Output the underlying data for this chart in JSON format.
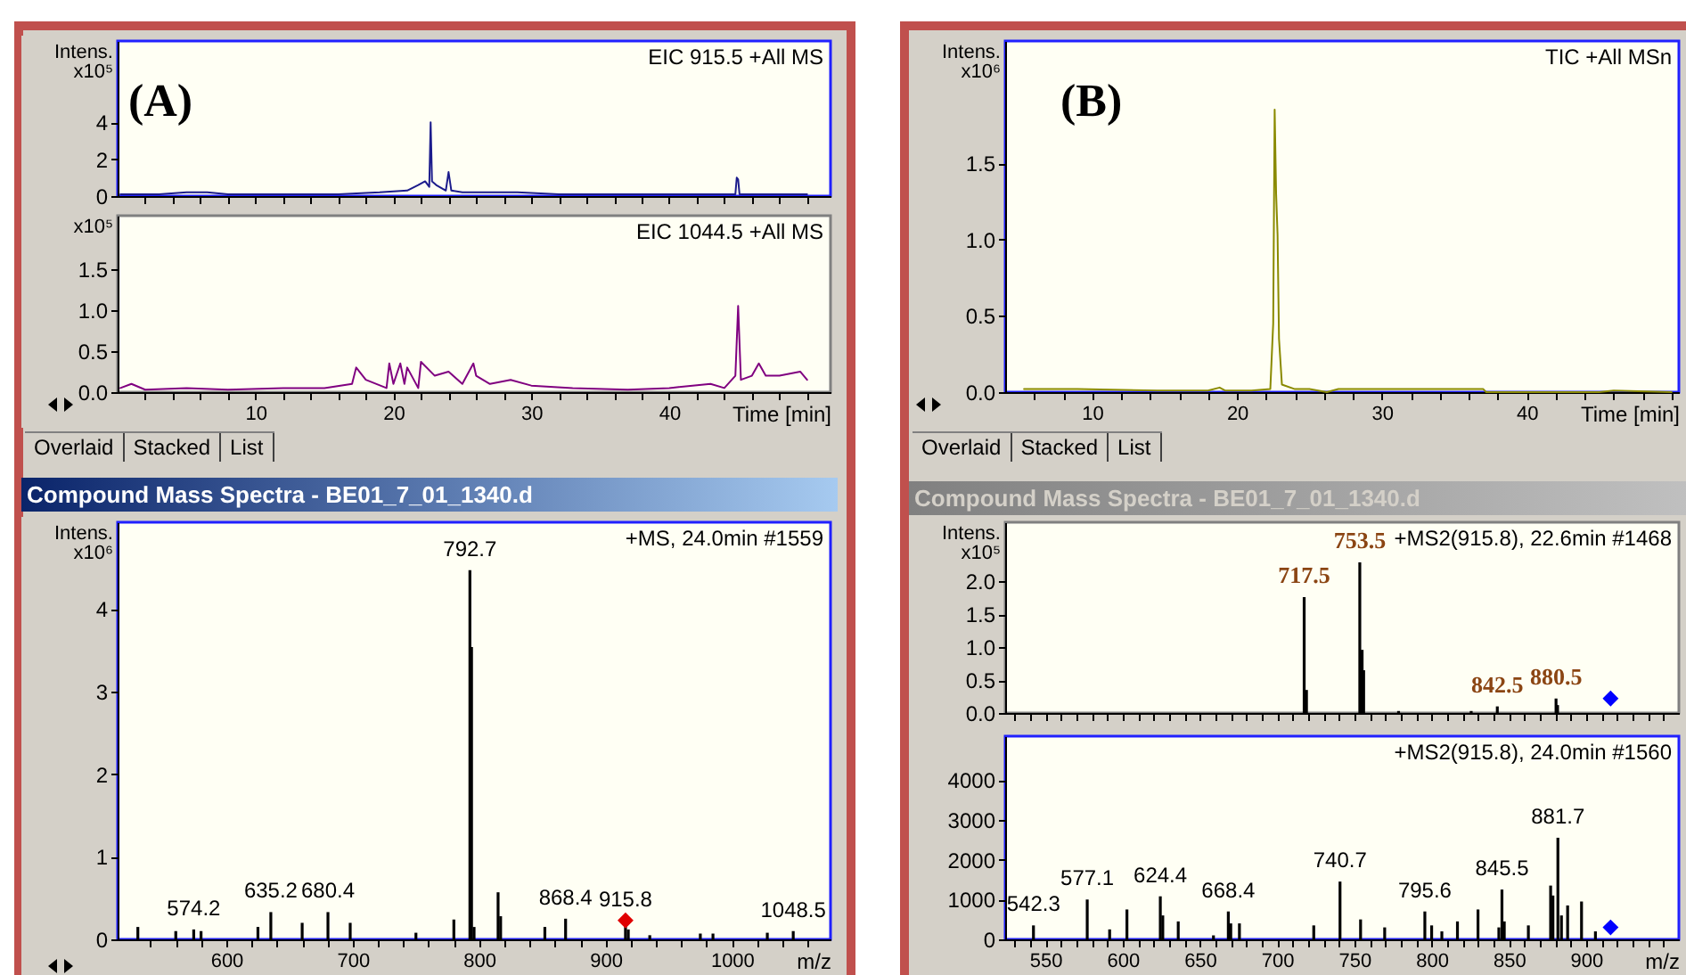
{
  "chart_data": [
    {
      "type": "line",
      "title": "EIC 915.5 +All MS",
      "ylabel": "Intens. x10⁵",
      "annotations": [
        "(A)"
      ],
      "xlim": [
        0,
        51.7
      ],
      "ylim": [
        0,
        8.4
      ],
      "tick_labels": "y",
      "yticks": [
        0,
        2,
        4
      ],
      "xticks": [
        {
          "value": 2,
          "label": null
        },
        {
          "value": 4,
          "label": null
        },
        {
          "value": 6,
          "label": null
        },
        {
          "value": 8,
          "label": null
        },
        10,
        {
          "value": 12,
          "label": null
        },
        {
          "value": 14,
          "label": null
        },
        {
          "value": 16,
          "label": null
        },
        {
          "value": 18,
          "label": null
        },
        20,
        {
          "value": 22,
          "label": null
        },
        {
          "value": 24,
          "label": null
        },
        {
          "value": 26,
          "label": null
        },
        {
          "value": 28,
          "label": null
        },
        30,
        {
          "value": 32,
          "label": null
        },
        {
          "value": 34,
          "label": null
        },
        {
          "value": 36,
          "label": null
        },
        {
          "value": 38,
          "label": null
        },
        40,
        {
          "value": 42,
          "label": null
        },
        {
          "value": 44,
          "label": null
        },
        {
          "value": 46,
          "label": null
        },
        {
          "value": 48,
          "label": null
        },
        {
          "value": 50,
          "label": null
        }
      ],
      "series": [
        {
          "color": "#1c1c8c",
          "x": [
            0.2,
            3,
            5,
            6.5,
            8,
            12,
            16,
            19,
            21,
            21.8,
            22.3,
            22.6,
            22.7,
            22.8,
            23.1,
            23.8,
            24.0,
            24.2,
            25,
            27,
            29,
            32,
            38,
            44.8,
            44.9,
            45.0,
            45.1,
            47,
            50
          ],
          "values": [
            0.1,
            0.1,
            0.2,
            0.2,
            0.1,
            0.1,
            0.1,
            0.2,
            0.3,
            0.6,
            0.8,
            0.5,
            4.0,
            0.8,
            0.6,
            0.3,
            1.3,
            0.3,
            0.2,
            0.2,
            0.2,
            0.1,
            0.1,
            0.1,
            1.0,
            0.9,
            0.1,
            0.1,
            0.1
          ]
        }
      ]
    },
    {
      "type": "line",
      "title": "EIC 1044.5 +All MS",
      "ylabel": "x10⁵",
      "xlabel": "Time [min]",
      "annotations": [
        "Overlaid",
        "Stacked",
        "List"
      ],
      "xlim": [
        0,
        51.7
      ],
      "ylim": [
        0,
        2.15
      ],
      "yticks": [
        {
          "value": 0,
          "label": "0.0"
        },
        0.5,
        {
          "value": 1,
          "label": "1.0"
        },
        1.5
      ],
      "xticks": [
        {
          "value": 2,
          "label": null
        },
        {
          "value": 4,
          "label": null
        },
        {
          "value": 6,
          "label": null
        },
        {
          "value": 8,
          "label": null
        },
        10,
        {
          "value": 12,
          "label": null
        },
        {
          "value": 14,
          "label": null
        },
        {
          "value": 16,
          "label": null
        },
        {
          "value": 18,
          "label": null
        },
        20,
        {
          "value": 22,
          "label": null
        },
        {
          "value": 24,
          "label": null
        },
        {
          "value": 26,
          "label": null
        },
        {
          "value": 28,
          "label": null
        },
        30,
        {
          "value": 32,
          "label": null
        },
        {
          "value": 34,
          "label": null
        },
        {
          "value": 36,
          "label": null
        },
        {
          "value": 38,
          "label": null
        },
        40,
        {
          "value": 42,
          "label": null
        },
        {
          "value": 44,
          "label": null
        },
        {
          "value": 46,
          "label": null
        },
        {
          "value": 48,
          "label": null
        },
        {
          "value": 50,
          "label": null
        }
      ],
      "series": [
        {
          "color": "#800080",
          "x": [
            0.2,
            1,
            2,
            5,
            8,
            12,
            15,
            17,
            17.3,
            18,
            19.5,
            19.7,
            20,
            20.5,
            20.8,
            21,
            21.8,
            22,
            23,
            24,
            25,
            25.8,
            26,
            27,
            28.5,
            30,
            33,
            37,
            40,
            43,
            44,
            44.8,
            45.0,
            45.2,
            46,
            46.5,
            47,
            48,
            49.5,
            50
          ],
          "values": [
            0.05,
            0.1,
            0.03,
            0.05,
            0.03,
            0.05,
            0.05,
            0.1,
            0.3,
            0.15,
            0.05,
            0.35,
            0.1,
            0.35,
            0.1,
            0.3,
            0.05,
            0.37,
            0.2,
            0.25,
            0.1,
            0.35,
            0.2,
            0.1,
            0.15,
            0.08,
            0.05,
            0.03,
            0.05,
            0.1,
            0.05,
            0.2,
            1.05,
            0.15,
            0.2,
            0.35,
            0.2,
            0.2,
            0.25,
            0.15
          ]
        }
      ]
    },
    {
      "type": "bar",
      "title": "+MS, 24.0min #1559",
      "ylabel": "Intens. x10⁶",
      "xlabel": "m/z",
      "xlim": [
        514,
        1078
      ],
      "ylim": [
        0,
        5.05
      ],
      "yticks": [
        0,
        1,
        2,
        3,
        4
      ],
      "annotations": [
        "Compound Mass Spectra - BE01_7_01_1340.d",
        {
          "text": "792.7",
          "x": 792.7,
          "y": 4.47
        },
        {
          "text": "574.2",
          "x": 574.2,
          "y": 0.12
        },
        {
          "text": "635.2",
          "x": 635.2,
          "y": 0.33
        },
        {
          "text": "680.4",
          "x": 680.4,
          "y": 0.33
        },
        {
          "text": "868.4",
          "x": 868.4,
          "y": 0.25
        },
        {
          "text": "915.8",
          "x": 915.8,
          "y": 0.23
        },
        {
          "text": "1048.5",
          "x": 1048.5,
          "y": 0.1
        }
      ],
      "xticks": [
        {
          "value": 540,
          "label": null
        },
        {
          "value": 560,
          "label": null
        },
        {
          "value": 580,
          "label": null
        },
        600,
        {
          "value": 620,
          "label": null
        },
        {
          "value": 640,
          "label": null
        },
        {
          "value": 660,
          "label": null
        },
        {
          "value": 680,
          "label": null
        },
        700,
        {
          "value": 720,
          "label": null
        },
        {
          "value": 740,
          "label": null
        },
        {
          "value": 760,
          "label": null
        },
        {
          "value": 780,
          "label": null
        },
        800,
        {
          "value": 820,
          "label": null
        },
        {
          "value": 840,
          "label": null
        },
        {
          "value": 860,
          "label": null
        },
        {
          "value": 880,
          "label": null
        },
        900,
        {
          "value": 920,
          "label": null
        },
        {
          "value": 940,
          "label": null
        },
        {
          "value": 960,
          "label": null
        },
        {
          "value": 980,
          "label": null
        },
        1000,
        {
          "value": 1020,
          "label": null
        },
        {
          "value": 1040,
          "label": null
        },
        {
          "value": 1060,
          "label": null
        }
      ],
      "series": [
        {
          "color": "#000000",
          "x": [
            530,
            560,
            574.2,
            580,
            625,
            635.2,
            660,
            680.4,
            698,
            750,
            780,
            792.7,
            794,
            796,
            815,
            817,
            852,
            868.4,
            915.8,
            918,
            935,
            975,
            985,
            1028,
            1048.5
          ],
          "values": [
            0.15,
            0.1,
            0.12,
            0.1,
            0.15,
            0.33,
            0.2,
            0.33,
            0.2,
            0.08,
            0.24,
            4.47,
            3.54,
            0.15,
            0.57,
            0.28,
            0.15,
            0.25,
            0.15,
            0.12,
            0.05,
            0.07,
            0.07,
            0.08,
            0.1
          ]
        },
        {
          "type": "scatter",
          "marker": "diamond",
          "color": "#e00000",
          "x": [
            915.8
          ],
          "values": [
            0.23
          ]
        }
      ]
    },
    {
      "type": "line",
      "title": "TIC +All MSn",
      "ylabel": "Intens. x10⁶",
      "xlabel": "Time [min]",
      "annotations": [
        "(B)",
        "Overlaid",
        "Stacked",
        "List"
      ],
      "xlim": [
        4,
        50.5
      ],
      "ylim": [
        0,
        2.3
      ],
      "yticks": [
        {
          "value": 0,
          "label": "0.0"
        },
        0.5,
        {
          "value": 1,
          "label": "1.0"
        },
        1.5
      ],
      "xticks": [
        {
          "value": 6,
          "label": null
        },
        {
          "value": 8,
          "label": null
        },
        10,
        {
          "value": 12,
          "label": null
        },
        {
          "value": 14,
          "label": null
        },
        {
          "value": 16,
          "label": null
        },
        {
          "value": 18,
          "label": null
        },
        20,
        {
          "value": 22,
          "label": null
        },
        {
          "value": 24,
          "label": null
        },
        {
          "value": 26,
          "label": null
        },
        {
          "value": 28,
          "label": null
        },
        30,
        {
          "value": 32,
          "label": null
        },
        {
          "value": 34,
          "label": null
        },
        {
          "value": 36,
          "label": null
        },
        {
          "value": 38,
          "label": null
        },
        40,
        {
          "value": 42,
          "label": null
        },
        {
          "value": 44,
          "label": null
        },
        {
          "value": 46,
          "label": null
        },
        {
          "value": 48,
          "label": null
        },
        {
          "value": 50,
          "label": null
        }
      ],
      "series": [
        {
          "color": "#8a8a00",
          "x": [
            5.3,
            9,
            14.5,
            18,
            18.8,
            19.2,
            21,
            22.3,
            22.5,
            22.6,
            22.7,
            22.8,
            22.9,
            23.1,
            24,
            25,
            26.2,
            27,
            37,
            37.2,
            45,
            46,
            50
          ],
          "values": [
            0.02,
            0.02,
            0.01,
            0.01,
            0.03,
            0.01,
            0.01,
            0.02,
            0.45,
            1.85,
            1.3,
            1.03,
            0.35,
            0.05,
            0.02,
            0.02,
            0.0,
            0.02,
            0.02,
            0.0,
            0.0,
            0.01,
            0.0
          ]
        }
      ]
    },
    {
      "type": "bar",
      "title": "+MS2(915.8), 22.6min #1468",
      "ylabel": "Intens. x10⁵",
      "xlim": [
        524,
        960
      ],
      "ylim": [
        0,
        2.9
      ],
      "tick_labels": "y",
      "yticks": [
        {
          "value": 0,
          "label": "0.0"
        },
        0.5,
        {
          "value": 1,
          "label": "1.0"
        },
        1.5,
        {
          "value": 2,
          "label": "2.0"
        }
      ],
      "annotations": [
        "Compound Mass Spectra - BE01_7_01_1340.d",
        {
          "text": "717.5",
          "x": 717.5,
          "y": 1.76
        },
        {
          "text": "753.5",
          "x": 753.5,
          "y": 2.29
        },
        {
          "text": "842.5",
          "x": 842.5,
          "y": 0.1
        },
        {
          "text": "880.5",
          "x": 880.5,
          "y": 0.22
        }
      ],
      "xticks": [
        {
          "value": 530,
          "label": null
        },
        {
          "value": 540,
          "label": null
        },
        550,
        {
          "value": 560,
          "label": null
        },
        {
          "value": 570,
          "label": null
        },
        {
          "value": 580,
          "label": null
        },
        {
          "value": 590,
          "label": null
        },
        600,
        {
          "value": 610,
          "label": null
        },
        {
          "value": 620,
          "label": null
        },
        {
          "value": 630,
          "label": null
        },
        {
          "value": 640,
          "label": null
        },
        650,
        {
          "value": 660,
          "label": null
        },
        {
          "value": 670,
          "label": null
        },
        {
          "value": 680,
          "label": null
        },
        {
          "value": 690,
          "label": null
        },
        700,
        {
          "value": 710,
          "label": null
        },
        {
          "value": 720,
          "label": null
        },
        {
          "value": 730,
          "label": null
        },
        {
          "value": 740,
          "label": null
        },
        750,
        {
          "value": 760,
          "label": null
        },
        {
          "value": 770,
          "label": null
        },
        {
          "value": 780,
          "label": null
        },
        {
          "value": 790,
          "label": null
        },
        800,
        {
          "value": 810,
          "label": null
        },
        {
          "value": 820,
          "label": null
        },
        {
          "value": 830,
          "label": null
        },
        {
          "value": 840,
          "label": null
        },
        850,
        {
          "value": 860,
          "label": null
        },
        {
          "value": 870,
          "label": null
        },
        {
          "value": 880,
          "label": null
        },
        {
          "value": 890,
          "label": null
        },
        900,
        {
          "value": 910,
          "label": null
        },
        {
          "value": 920,
          "label": null
        },
        {
          "value": 930,
          "label": null
        },
        {
          "value": 940,
          "label": null
        },
        {
          "value": 950,
          "label": null
        }
      ],
      "series": [
        {
          "color": "#000000",
          "x": [
            717.5,
            719,
            753.5,
            755,
            756,
            778.6,
            825.6,
            842.5,
            880.5,
            881.5
          ],
          "values": [
            1.76,
            0.35,
            2.29,
            0.96,
            0.65,
            0.03,
            0.03,
            0.1,
            0.22,
            0.12
          ]
        },
        {
          "type": "scatter",
          "marker": "diamond",
          "color": "#0000ff",
          "x": [
            915.8
          ],
          "values": [
            0.22
          ]
        }
      ]
    },
    {
      "type": "bar",
      "title": "+MS2(915.8), 24.0min #1560",
      "xlabel": "m/z",
      "xlim": [
        524,
        960
      ],
      "ylim": [
        0,
        5100
      ],
      "yticks": [
        0,
        1000,
        2000,
        3000,
        4000
      ],
      "annotations": [
        {
          "text": "542.3",
          "x": 542.3,
          "y": 350
        },
        {
          "text": "577.1",
          "x": 577.1,
          "y": 1000
        },
        {
          "text": "624.4",
          "x": 624.4,
          "y": 1080
        },
        {
          "text": "668.4",
          "x": 668.4,
          "y": 700
        },
        {
          "text": "740.7",
          "x": 740.7,
          "y": 1450
        },
        {
          "text": "795.6",
          "x": 795.6,
          "y": 700
        },
        {
          "text": "845.5",
          "x": 845.5,
          "y": 1250
        },
        {
          "text": "881.7",
          "x": 881.7,
          "y": 2550
        }
      ],
      "xticks": [
        {
          "value": 530,
          "label": null
        },
        {
          "value": 540,
          "label": null
        },
        550,
        {
          "value": 560,
          "label": null
        },
        {
          "value": 570,
          "label": null
        },
        {
          "value": 580,
          "label": null
        },
        {
          "value": 590,
          "label": null
        },
        600,
        {
          "value": 610,
          "label": null
        },
        {
          "value": 620,
          "label": null
        },
        {
          "value": 630,
          "label": null
        },
        {
          "value": 640,
          "label": null
        },
        650,
        {
          "value": 660,
          "label": null
        },
        {
          "value": 670,
          "label": null
        },
        {
          "value": 680,
          "label": null
        },
        {
          "value": 690,
          "label": null
        },
        700,
        {
          "value": 710,
          "label": null
        },
        {
          "value": 720,
          "label": null
        },
        {
          "value": 730,
          "label": null
        },
        {
          "value": 740,
          "label": null
        },
        750,
        {
          "value": 760,
          "label": null
        },
        {
          "value": 770,
          "label": null
        },
        {
          "value": 780,
          "label": null
        },
        {
          "value": 790,
          "label": null
        },
        800,
        {
          "value": 810,
          "label": null
        },
        {
          "value": 820,
          "label": null
        },
        {
          "value": 830,
          "label": null
        },
        {
          "value": 840,
          "label": null
        },
        850,
        {
          "value": 860,
          "label": null
        },
        {
          "value": 870,
          "label": null
        },
        {
          "value": 880,
          "label": null
        },
        {
          "value": 890,
          "label": null
        },
        900,
        {
          "value": 910,
          "label": null
        },
        {
          "value": 920,
          "label": null
        },
        {
          "value": 930,
          "label": null
        },
        {
          "value": 940,
          "label": null
        },
        {
          "value": 950,
          "label": null
        }
      ],
      "series": [
        {
          "color": "#000000",
          "x": [
            542.3,
            577.1,
            591.6,
            602.8,
            624.4,
            626,
            636,
            658.8,
            668.4,
            670,
            675.6,
            723.7,
            740.7,
            754,
            769.6,
            795.6,
            800,
            806.6,
            816.7,
            830,
            843.5,
            845.5,
            847,
            862.6,
            877,
            878.5,
            881.7,
            884,
            888,
            897,
            906
          ],
          "values": [
            350,
            1000,
            250,
            750,
            1080,
            600,
            450,
            100,
            700,
            400,
            400,
            350,
            1450,
            500,
            300,
            700,
            350,
            200,
            450,
            750,
            300,
            1250,
            450,
            350,
            1350,
            1100,
            2550,
            600,
            850,
            950,
            200
          ]
        },
        {
          "type": "scatter",
          "marker": "diamond",
          "color": "#0000ff",
          "x": [
            915.8
          ],
          "values": [
            300
          ]
        }
      ]
    }
  ]
}
